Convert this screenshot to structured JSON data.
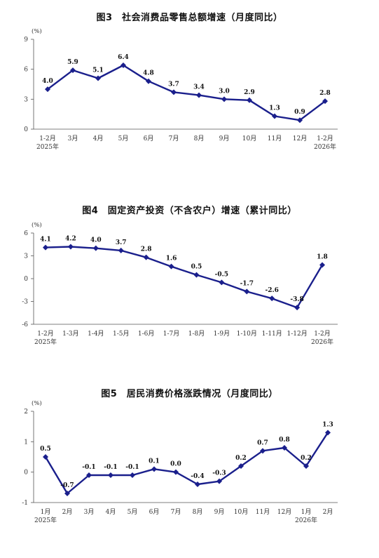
{
  "chart_data": [
    {
      "type": "line",
      "title": "图3　社会消费品零售总额增速（月度同比）",
      "ylabel": "(%)",
      "ylim": [
        0,
        9
      ],
      "yticks": [
        0,
        3,
        6,
        9
      ],
      "categories": [
        "1-2月",
        "3月",
        "4月",
        "5月",
        "6月",
        "7月",
        "8月",
        "9月",
        "10月",
        "11月",
        "12月",
        "1-2月"
      ],
      "year_labels": [
        {
          "index": 0,
          "text": "2025年"
        },
        {
          "index": 11,
          "text": "2026年"
        }
      ],
      "values": [
        4.0,
        5.9,
        5.1,
        6.4,
        4.8,
        3.7,
        3.4,
        3.0,
        2.9,
        1.3,
        0.9,
        2.8
      ],
      "value_labels": [
        "4.0",
        "5.9",
        "5.1",
        "6.4",
        "4.8",
        "3.7",
        "3.4",
        "3.0",
        "2.9",
        "1.3",
        "0.9",
        "2.8"
      ],
      "color": "#1a1f8c",
      "grid": false
    },
    {
      "type": "line",
      "title": "图4　固定资产投资（不含农户）增速（累计同比）",
      "ylabel": "(%)",
      "ylim": [
        -6,
        6
      ],
      "yticks": [
        -6,
        -3,
        0,
        3,
        6
      ],
      "categories": [
        "1-2月",
        "1-3月",
        "1-4月",
        "1-5月",
        "1-6月",
        "1-7月",
        "1-8月",
        "1-9月",
        "1-10月",
        "1-11月",
        "1-12月",
        "1-2月"
      ],
      "year_labels": [
        {
          "index": 0,
          "text": "2025年"
        },
        {
          "index": 11,
          "text": "2026年"
        }
      ],
      "values": [
        4.1,
        4.2,
        4.0,
        3.7,
        2.8,
        1.6,
        0.5,
        -0.5,
        -1.7,
        -2.6,
        -3.8,
        1.8
      ],
      "value_labels": [
        "4.1",
        "4.2",
        "4.0",
        "3.7",
        "2.8",
        "1.6",
        "0.5",
        "-0.5",
        "-1.7",
        "-2.6",
        "-3.8",
        "1.8"
      ],
      "color": "#1a1f8c",
      "grid": false
    },
    {
      "type": "line",
      "title": "图5　居民消费价格涨跌情况（月度同比）",
      "ylabel": "(%)",
      "ylim": [
        -1,
        2
      ],
      "yticks": [
        -1,
        0,
        1,
        2
      ],
      "categories": [
        "1月",
        "2月",
        "3月",
        "4月",
        "5月",
        "6月",
        "7月",
        "8月",
        "9月",
        "10月",
        "11月",
        "12月",
        "1月",
        "2月"
      ],
      "year_labels": [
        {
          "index": 0,
          "text": "2025年"
        },
        {
          "index": 12,
          "text": "2026年"
        }
      ],
      "values": [
        0.5,
        -0.7,
        -0.1,
        -0.1,
        -0.1,
        0.1,
        0.0,
        -0.4,
        -0.3,
        0.2,
        0.7,
        0.8,
        0.2,
        1.3
      ],
      "value_labels": [
        "0.5",
        "-0.7",
        "-0.1",
        "-0.1",
        "-0.1",
        "0.1",
        "0.0",
        "-0.4",
        "-0.3",
        "0.2",
        "0.7",
        "0.8",
        "0.2",
        "1.3"
      ],
      "color": "#1a1f8c",
      "grid": false
    }
  ]
}
